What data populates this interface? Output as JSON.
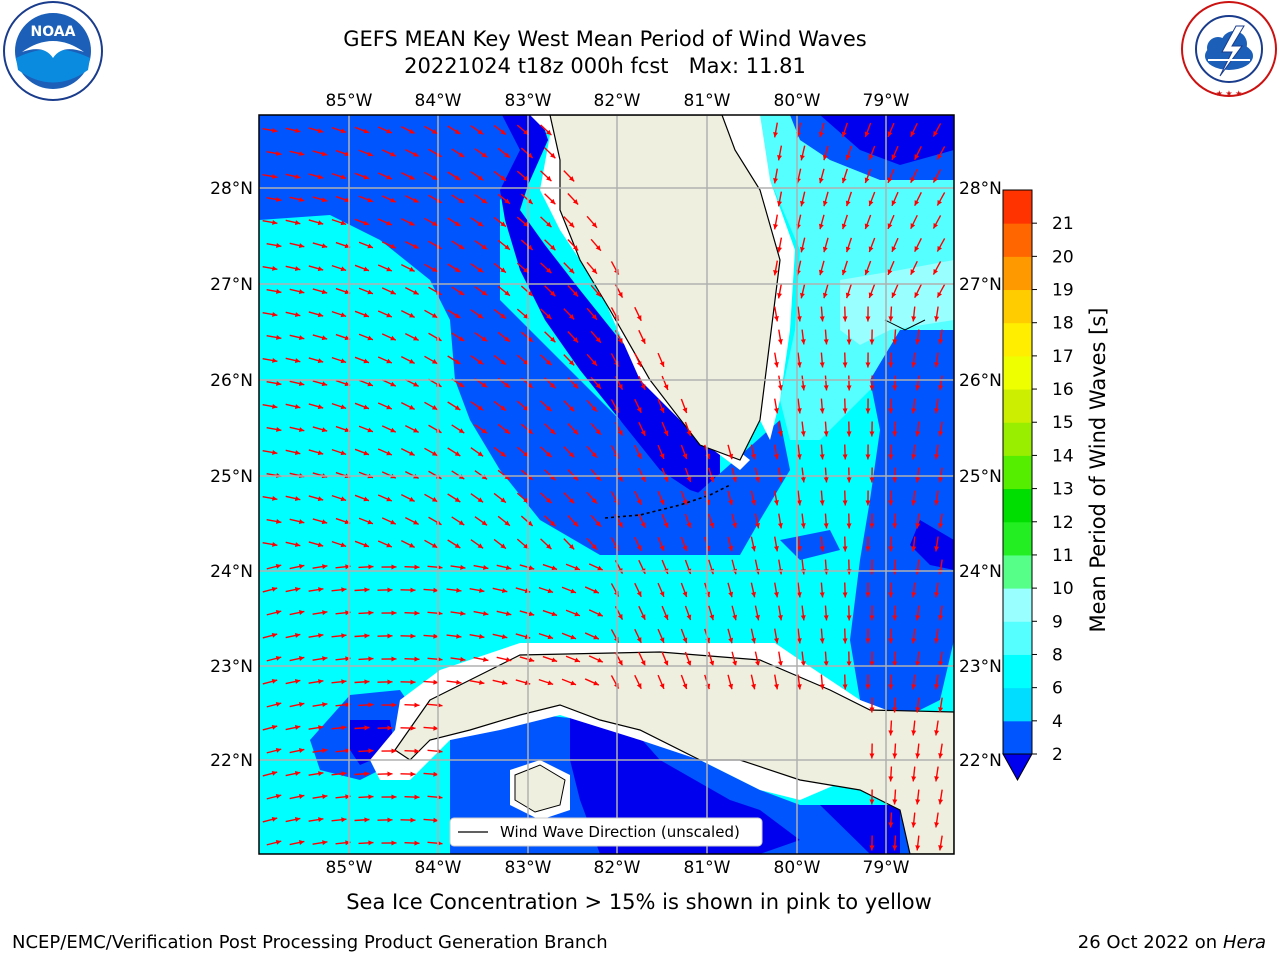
{
  "title": {
    "line1": "GEFS MEAN Key West Mean Period of Wind Waves",
    "line2": "20221024 t18z 000h fcst   Max: 11.81"
  },
  "logos": {
    "left": "NOAA",
    "right": "NATIONAL WEATHER SERVICE"
  },
  "map": {
    "lon_labels": [
      "85°W",
      "84°W",
      "83°W",
      "82°W",
      "81°W",
      "80°W",
      "79°W"
    ],
    "lat_labels": [
      "28°N",
      "27°N",
      "26°N",
      "25°N",
      "24°N",
      "23°N",
      "22°N"
    ],
    "legend_label": "Wind Wave Direction (unscaled)",
    "arrow_color": "#ff0000",
    "land_color": "#efefdf"
  },
  "colorbar": {
    "label": "Mean Period of Wind Waves [s]",
    "ticks": [
      "2",
      "4",
      "6",
      "8",
      "9",
      "10",
      "11",
      "12",
      "13",
      "14",
      "15",
      "16",
      "17",
      "18",
      "19",
      "20",
      "21"
    ],
    "colors": [
      "#0055ff",
      "#00ddff",
      "#00ffff",
      "#55ffff",
      "#99ffff",
      "#55ff88",
      "#22ee22",
      "#00dd00",
      "#55ee00",
      "#99ee00",
      "#ccee00",
      "#eeff00",
      "#ffee00",
      "#ffcc00",
      "#ff9900",
      "#ff6600",
      "#ff3300",
      "#ff0000"
    ],
    "under_color": "#0000ee"
  },
  "caption": "Sea Ice Concentration > 15% is shown in pink to yellow",
  "footer": {
    "left": "NCEP/EMC/Verification Post Processing Product Generation Branch",
    "right_date": "26 Oct 2022 on ",
    "right_host": "Hera"
  }
}
